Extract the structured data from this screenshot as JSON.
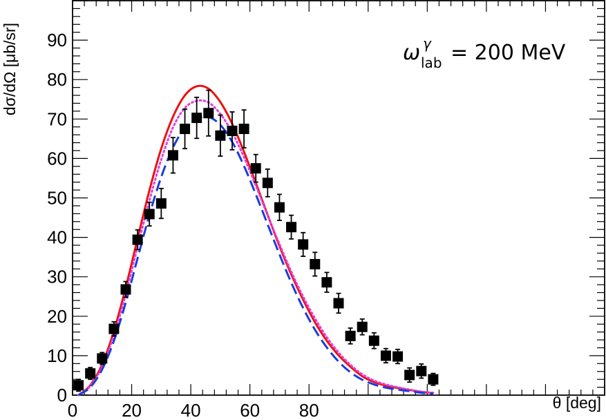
{
  "chart_data": {
    "type": "scatter",
    "title": "",
    "xlabel": "θ [deg]",
    "ylabel": "dσ/dΩ [μb/sr]",
    "xlim": [
      0,
      180
    ],
    "ylim": [
      0,
      100
    ],
    "x_ticks": [
      0,
      20,
      40,
      60,
      80
    ],
    "y_ticks": [
      0,
      10,
      20,
      30,
      40,
      50,
      60,
      70,
      80,
      90
    ],
    "grid": false,
    "annotation": {
      "omega": "ω",
      "sup": "γ",
      "sub": "lab",
      "value": "= 200 MeV"
    },
    "data_points": {
      "name": "data",
      "color": "#000000",
      "x": [
        2,
        6,
        10,
        14,
        18,
        22,
        26,
        30,
        34,
        38,
        42,
        46,
        50,
        54,
        58,
        62,
        66,
        70,
        74,
        78,
        82,
        86,
        90,
        94,
        98,
        102,
        106,
        110,
        114,
        118,
        122
      ],
      "y": [
        2.5,
        5.5,
        9.3,
        16.8,
        26.8,
        39.4,
        45.9,
        48.6,
        60.8,
        67.5,
        70.3,
        71.5,
        65.8,
        67.0,
        67.5,
        57.5,
        53.8,
        47.6,
        42.6,
        38.2,
        33.2,
        28.6,
        23.3,
        15.0,
        17.3,
        13.8,
        10.0,
        9.8,
        5.1,
        6.1,
        4.0
      ],
      "err": [
        1.5,
        1.5,
        1.5,
        1.8,
        2.0,
        2.5,
        3.0,
        3.8,
        4.5,
        5.0,
        5.2,
        5.8,
        5.2,
        4.8,
        4.8,
        3.5,
        3.5,
        3.3,
        3.0,
        3.0,
        3.0,
        2.5,
        2.5,
        2.0,
        2.0,
        2.0,
        1.8,
        1.8,
        1.8,
        1.8,
        1.5
      ]
    },
    "series": [
      {
        "name": "red-solid",
        "color": "#ee1111",
        "style": "solid",
        "x": [
          2,
          6,
          10,
          14,
          18,
          22,
          26,
          30,
          34,
          38,
          42,
          46,
          50,
          54,
          58,
          62,
          66,
          70,
          74,
          78,
          82,
          86,
          90,
          94,
          98,
          102,
          106,
          110,
          114,
          118,
          122
        ],
        "y": [
          0,
          2.5,
          7.8,
          16.3,
          27.3,
          39.7,
          51.9,
          62.5,
          70.6,
          76.0,
          78.3,
          77.7,
          74.3,
          68.8,
          61.7,
          53.8,
          45.7,
          37.8,
          30.6,
          24.2,
          18.5,
          13.8,
          10.1,
          7.2,
          4.8,
          3.3,
          2.4,
          1.8,
          1.3,
          0.8,
          0.5
        ]
      },
      {
        "name": "magenta-dotted",
        "color": "#e040e0",
        "style": "dotted",
        "x": [
          2,
          6,
          10,
          14,
          18,
          22,
          26,
          30,
          34,
          38,
          42,
          46,
          50,
          54,
          58,
          62,
          66,
          70,
          74,
          78,
          82,
          86,
          90,
          94,
          98,
          102,
          106,
          110,
          114,
          118,
          122
        ],
        "y": [
          0,
          2.3,
          7.2,
          15.2,
          25.6,
          37.6,
          49.3,
          59.7,
          67.9,
          72.8,
          74.6,
          74.2,
          71.3,
          66.6,
          60.3,
          53.1,
          45.6,
          38.3,
          31.3,
          25.0,
          19.5,
          14.7,
          10.8,
          7.7,
          5.3,
          3.7,
          2.7,
          2.0,
          1.4,
          0.9,
          0.6
        ]
      },
      {
        "name": "blue-dashed",
        "color": "#1a3cdc",
        "style": "dashed",
        "x": [
          2,
          6,
          10,
          14,
          18,
          22,
          26,
          30,
          34,
          38,
          42,
          46,
          50,
          54,
          58,
          62,
          66,
          70,
          74,
          78,
          82,
          86,
          90,
          94,
          98,
          102,
          106,
          110,
          114,
          118,
          122
        ],
        "y": [
          0,
          2.0,
          6.5,
          13.8,
          23.5,
          34.7,
          45.7,
          55.3,
          62.8,
          67.8,
          70.1,
          70.5,
          68.5,
          64.2,
          58.1,
          50.9,
          43.3,
          35.7,
          28.5,
          22.1,
          16.6,
          12.1,
          8.5,
          5.8,
          3.9,
          2.7,
          1.9,
          1.4,
          1.0,
          0.6,
          0.4
        ]
      }
    ]
  }
}
